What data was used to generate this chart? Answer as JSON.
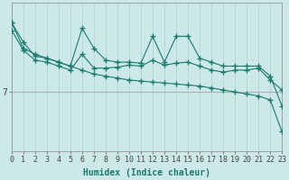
{
  "xlabel": "Humidex (Indice chaleur)",
  "bg_color": "#cce8e8",
  "grid_color": "#aad0d0",
  "line_color": "#1a7a6e",
  "hline_color": "#b0b0b0",
  "hline_y": 7,
  "xlim": [
    0,
    23
  ],
  "ylim_min": 4.0,
  "ylim_max": 11.5,
  "ytick_val": 7,
  "line1_x": [
    0,
    1,
    2,
    3,
    4,
    5,
    6,
    7,
    8,
    9,
    10,
    11,
    12,
    13,
    14,
    15,
    16,
    17,
    18,
    19,
    20,
    21,
    22,
    23
  ],
  "line1_y": [
    10.5,
    9.5,
    8.8,
    8.7,
    8.5,
    8.3,
    10.2,
    9.2,
    8.6,
    8.5,
    8.5,
    8.45,
    9.8,
    8.5,
    9.8,
    9.8,
    8.7,
    8.5,
    8.3,
    8.3,
    8.3,
    8.3,
    7.8,
    6.3
  ],
  "line2_x": [
    0,
    1,
    2,
    3,
    4,
    5,
    6,
    7,
    8,
    9,
    10,
    11,
    12,
    13,
    14,
    15,
    16,
    17,
    18,
    19,
    20,
    21,
    22,
    23
  ],
  "line2_y": [
    10.1,
    9.1,
    8.6,
    8.5,
    8.3,
    8.1,
    8.9,
    8.2,
    8.2,
    8.25,
    8.35,
    8.3,
    8.6,
    8.35,
    8.45,
    8.5,
    8.3,
    8.1,
    8.0,
    8.1,
    8.1,
    8.2,
    7.6,
    7.1
  ],
  "line3_x": [
    0,
    1,
    2,
    3,
    4,
    5,
    6,
    7,
    8,
    9,
    10,
    11,
    12,
    13,
    14,
    15,
    16,
    17,
    18,
    19,
    20,
    21,
    22,
    23
  ],
  "line3_y": [
    10.5,
    9.2,
    8.9,
    8.7,
    8.5,
    8.3,
    8.1,
    7.9,
    7.8,
    7.7,
    7.6,
    7.55,
    7.5,
    7.45,
    7.4,
    7.35,
    7.3,
    7.2,
    7.1,
    7.0,
    6.9,
    6.8,
    6.6,
    5.0
  ],
  "marker_size": 2.5,
  "linewidth": 0.8,
  "fontsize_label": 7,
  "fontsize_tick": 6
}
